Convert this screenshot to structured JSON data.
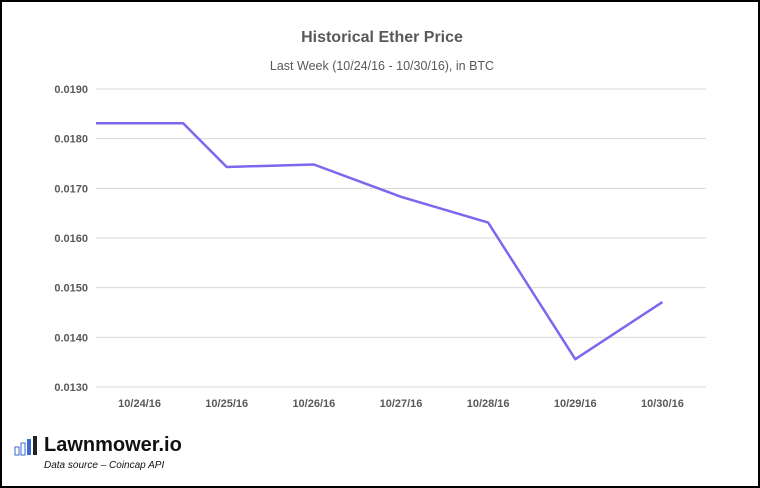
{
  "chart_data": {
    "type": "line",
    "title": "Historical Ether Price",
    "subtitle": "Last Week (10/24/16 - 10/30/16), in BTC",
    "xlabel": "",
    "ylabel": "",
    "categories": [
      "10/24/16",
      "10/25/16",
      "10/26/16",
      "10/27/16",
      "10/28/16",
      "10/29/16",
      "10/30/16"
    ],
    "x": [
      "10/24/16",
      "10/24/16",
      "10/25/16",
      "10/26/16",
      "10/27/16",
      "10/28/16",
      "10/29/16",
      "10/30/16"
    ],
    "series": [
      {
        "values": [
          0.01831,
          0.01831,
          0.01743,
          0.01748,
          0.01683,
          0.01631,
          0.01356,
          0.01471
        ],
        "color": "#7B68EE"
      }
    ],
    "ylim": [
      0.013,
      0.019
    ],
    "yticks": [
      "0.0190",
      "0.0180",
      "0.0170",
      "0.0160",
      "0.0150",
      "0.0140",
      "0.0130"
    ],
    "grid": true,
    "legend": "none"
  },
  "branding": {
    "name": "Lawnmower.io",
    "data_source": "Data source – Coincap API",
    "logo_icon": "bar-chart-logo-icon"
  },
  "colors": {
    "line": "#7B68EE",
    "grid": "#D9D9D9",
    "text": "#595959",
    "logo_blue": "#3A6BD0"
  }
}
